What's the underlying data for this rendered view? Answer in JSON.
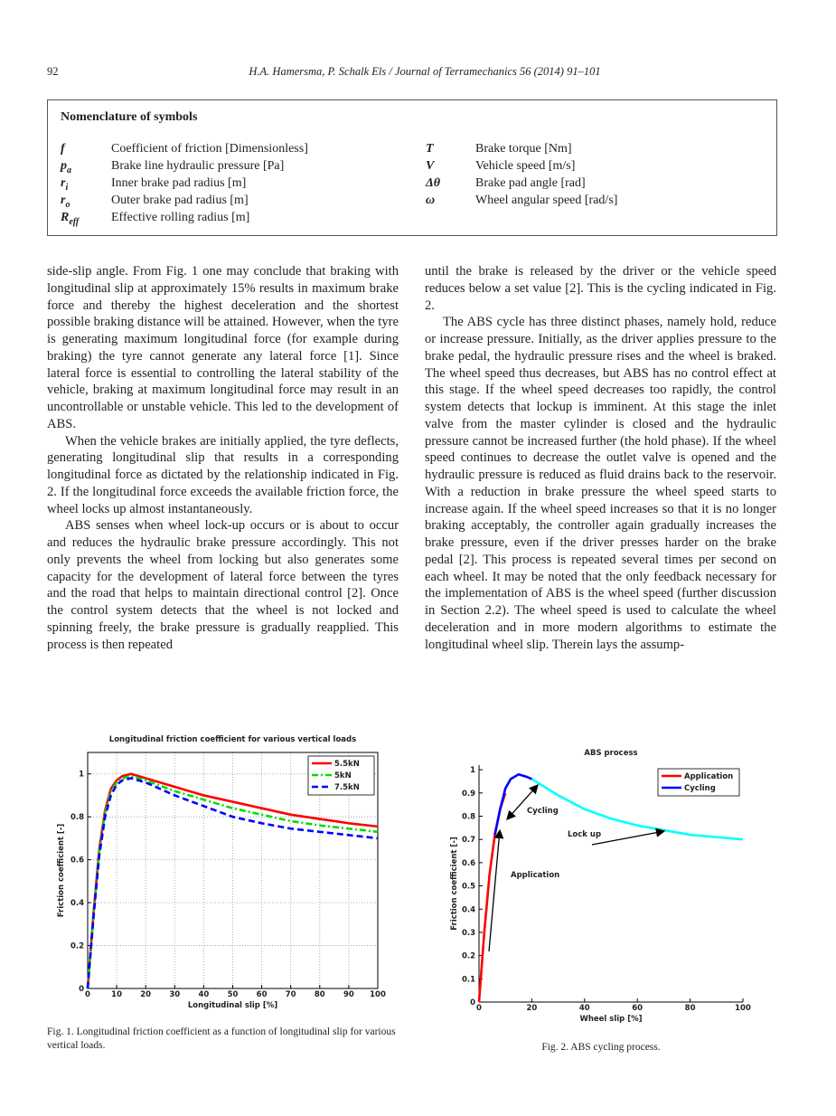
{
  "header": {
    "page_number": "92",
    "running_title": "H.A. Hamersma, P. Schalk Els / Journal of Terramechanics 56 (2014) 91–101"
  },
  "nomenclature": {
    "title": "Nomenclature of symbols",
    "left": [
      {
        "symbol": "f",
        "description": "Coefficient of friction [Dimensionless]"
      },
      {
        "symbol": "p",
        "sub": "a",
        "description": "Brake line hydraulic pressure [Pa]"
      },
      {
        "symbol": "r",
        "sub": "i",
        "description": "Inner brake pad radius [m]"
      },
      {
        "symbol": "r",
        "sub": "o",
        "description": "Outer brake pad radius [m]"
      },
      {
        "symbol": "R",
        "sub": "eff",
        "description": "Effective rolling radius [m]"
      }
    ],
    "right": [
      {
        "symbol": "T",
        "description": "Brake torque [Nm]"
      },
      {
        "symbol": "V",
        "description": "Vehicle speed [m/s]"
      },
      {
        "symbol": "Δθ",
        "description": "Brake pad angle [rad]"
      },
      {
        "symbol": "ω",
        "description": "Wheel angular speed [rad/s]"
      }
    ]
  },
  "body": {
    "left_column": [
      "side-slip angle. From Fig. 1 one may conclude that braking with longitudinal slip at approximately 15% results in maximum brake force and thereby the highest deceleration and the shortest possible braking distance will be attained. However, when the tyre is generating maximum longitudinal force (for example during braking) the tyre cannot generate any lateral force [1]. Since lateral force is essential to controlling the lateral stability of the vehicle, braking at maximum longitudinal force may result in an uncontrollable or unstable vehicle. This led to the development of ABS.",
      "When the vehicle brakes are initially applied, the tyre deflects, generating longitudinal slip that results in a corresponding longitudinal force as dictated by the relationship indicated in Fig. 2. If the longitudinal force exceeds the available friction force, the wheel locks up almost instantaneously.",
      "ABS senses when wheel lock-up occurs or is about to occur and reduces the hydraulic brake pressure accordingly. This not only prevents the wheel from locking but also generates some capacity for the development of lateral force between the tyres and the road that helps to maintain directional control [2]. Once the control system detects that the wheel is not locked and spinning freely, the brake pressure is gradually reapplied. This process is then repeated"
    ],
    "right_column": [
      "until the brake is released by the driver or the vehicle speed reduces below a set value [2]. This is the cycling indicated in Fig. 2.",
      "The ABS cycle has three distinct phases, namely hold, reduce or increase pressure. Initially, as the driver applies pressure to the brake pedal, the hydraulic pressure rises and the wheel is braked. The wheel speed thus decreases, but ABS has no control effect at this stage. If the wheel speed decreases too rapidly, the control system detects that lockup is imminent. At this stage the inlet valve from the master cylinder is closed and the hydraulic pressure cannot be increased further (the hold phase). If the wheel speed continues to decrease the outlet valve is opened and the hydraulic pressure is reduced as fluid drains back to the reservoir. With a reduction in brake pressure the wheel speed starts to increase again. If the wheel speed increases so that it is no longer braking acceptably, the controller again gradually increases the brake pressure, even if the driver presses harder on the brake pedal [2]. This process is repeated several times per second on each wheel. It may be noted that the only feedback necessary for the implementation of ABS is the wheel speed (further discussion in Section 2.2). The wheel speed is used to calculate the wheel deceleration and in more modern algorithms to estimate the longitudinal wheel slip. Therein lays the assump-"
    ]
  },
  "figures": [
    {
      "caption": "Fig. 1. Longitudinal friction coefficient as a function of longitudinal slip for various vertical loads."
    },
    {
      "caption": "Fig. 2. ABS cycling process."
    }
  ],
  "chart_data": [
    {
      "type": "line",
      "title": "Longitudinal friction coefficient for various vertical loads",
      "x_label": "Longitudinal slip [%]",
      "y_label": "Friction coefficient [-]",
      "xlim": [
        0,
        100
      ],
      "xticks": [
        0,
        10,
        20,
        30,
        40,
        50,
        60,
        70,
        80,
        90,
        100
      ],
      "ylim": [
        0,
        1.1
      ],
      "yticks": [
        0,
        0.2,
        0.4,
        0.6,
        0.8,
        1
      ],
      "grid": true,
      "frame": "box",
      "legend": "upper right",
      "series": [
        {
          "name": "5.5kN",
          "color": "#ff0000",
          "linestyle": "solid",
          "x": [
            0,
            2,
            4,
            6,
            8,
            10,
            12,
            15,
            20,
            30,
            40,
            50,
            60,
            70,
            80,
            90,
            100
          ],
          "values": [
            0,
            0.35,
            0.65,
            0.83,
            0.93,
            0.97,
            0.99,
            1.0,
            0.98,
            0.94,
            0.9,
            0.87,
            0.84,
            0.81,
            0.79,
            0.77,
            0.755
          ]
        },
        {
          "name": "5kN",
          "color": "#00dd00",
          "linestyle": "dashdot",
          "x": [
            0,
            2,
            4,
            6,
            8,
            10,
            12,
            15,
            20,
            30,
            40,
            50,
            60,
            70,
            80,
            90,
            100
          ],
          "values": [
            0,
            0.34,
            0.64,
            0.82,
            0.92,
            0.96,
            0.98,
            0.99,
            0.97,
            0.92,
            0.88,
            0.84,
            0.81,
            0.78,
            0.76,
            0.745,
            0.73
          ]
        },
        {
          "name": "7.5kN",
          "color": "#0000ff",
          "linestyle": "dashed",
          "x": [
            0,
            2,
            4,
            6,
            8,
            10,
            12,
            15,
            20,
            30,
            40,
            50,
            60,
            70,
            80,
            90,
            100
          ],
          "values": [
            0,
            0.33,
            0.62,
            0.8,
            0.9,
            0.95,
            0.97,
            0.98,
            0.96,
            0.9,
            0.85,
            0.8,
            0.77,
            0.745,
            0.73,
            0.715,
            0.7
          ]
        }
      ]
    },
    {
      "type": "line",
      "title": "ABS process",
      "x_label": "Wheel slip [%]",
      "y_label": "Friction coefficient [-]",
      "xlim": [
        0,
        100
      ],
      "xticks": [
        0,
        20,
        40,
        60,
        80,
        100
      ],
      "ylim": [
        0,
        1.02
      ],
      "yticks": [
        0,
        0.1,
        0.2,
        0.3,
        0.4,
        0.5,
        0.6,
        0.7,
        0.8,
        0.9,
        1
      ],
      "grid": false,
      "frame": "left-bottom",
      "legend": "upper right",
      "annotations": [
        "Cycling",
        "Lock up",
        "Application"
      ],
      "series": [
        {
          "color": "#00ffff",
          "linestyle": "solid",
          "x": [
            20,
            30,
            40,
            50,
            60,
            70,
            80,
            90,
            100
          ],
          "values": [
            0.96,
            0.89,
            0.83,
            0.79,
            0.76,
            0.74,
            0.72,
            0.71,
            0.7
          ]
        },
        {
          "name": "Application",
          "color": "#ff0000",
          "linestyle": "solid",
          "x": [
            0,
            2,
            4,
            6,
            8,
            10
          ],
          "values": [
            0,
            0.3,
            0.55,
            0.72,
            0.83,
            0.9
          ]
        },
        {
          "name": "Cycling",
          "color": "#0000ff",
          "linestyle": "solid",
          "x": [
            6,
            8,
            10,
            12,
            15,
            18,
            20
          ],
          "values": [
            0.72,
            0.83,
            0.92,
            0.96,
            0.98,
            0.97,
            0.96
          ]
        }
      ]
    }
  ]
}
